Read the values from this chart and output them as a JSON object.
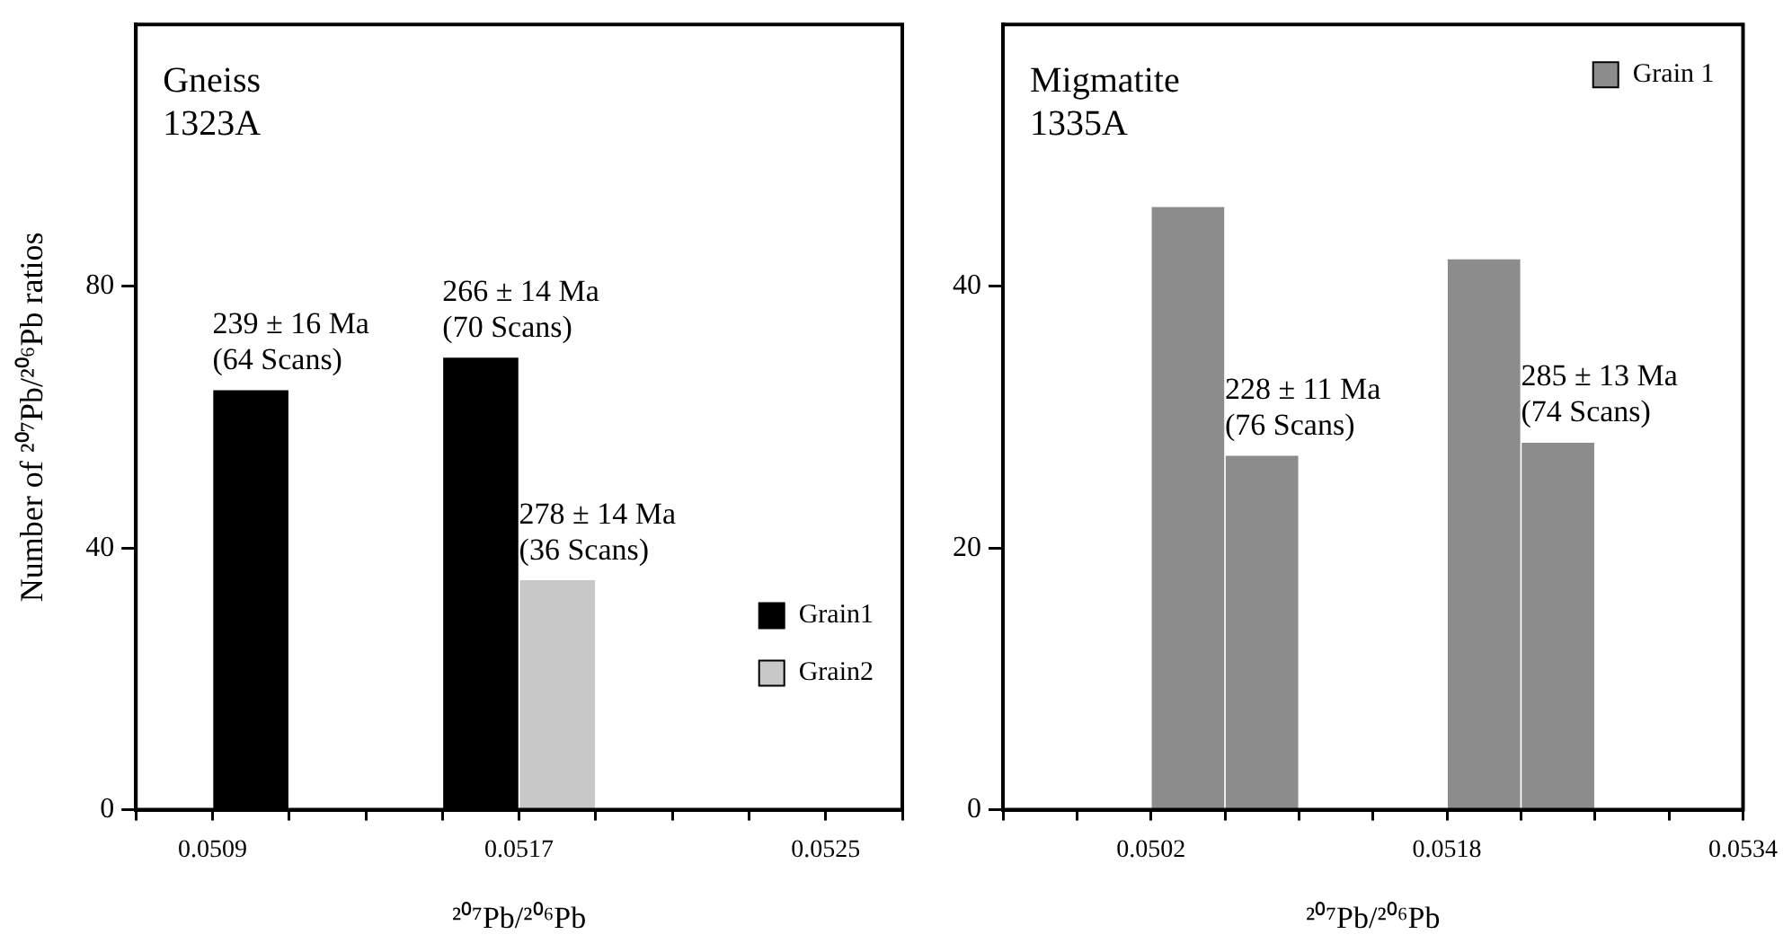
{
  "chart_data": [
    {
      "type": "histogram",
      "title": "Gneiss\n1323A",
      "xlabel": "²⁰⁷Pb/²⁰⁶Pb",
      "ylabel": "Number of ²⁰⁷Pb/²⁰⁶Pb ratios",
      "bins": [
        0.0509,
        0.0511,
        0.0513,
        0.0515,
        0.0517,
        0.0519
      ],
      "series": [
        {
          "name": "Grain1",
          "color": "#000000",
          "values": [
            64,
            null,
            null,
            69,
            null
          ]
        },
        {
          "name": "Grain2",
          "color": "#c8c8c8",
          "values": [
            null,
            null,
            null,
            null,
            35
          ]
        }
      ],
      "xlim": [
        0.0507,
        0.0527
      ],
      "xticks": [
        {
          "value": 0.0507,
          "label": null
        },
        0.0509,
        {
          "value": 0.0511,
          "label": null
        },
        {
          "value": 0.0513,
          "label": null
        },
        {
          "value": 0.0515,
          "label": null
        },
        0.0517,
        {
          "value": 0.0519,
          "label": null
        },
        {
          "value": 0.0521,
          "label": null
        },
        {
          "value": 0.0523,
          "label": null
        },
        0.0525,
        {
          "value": 0.0527,
          "label": null
        }
      ],
      "ylim": [
        0,
        120
      ],
      "yticks": [
        0,
        40,
        80
      ],
      "legend": "bottom right",
      "annotations": [
        {
          "text": "239 ± 16 Ma\n(64 Scans)",
          "x": 0.051,
          "y": 64
        },
        {
          "text": "266 ± 14 Ma\n(70 Scans)",
          "x": 0.0516,
          "y": 69
        },
        {
          "text": "278 ± 14 Ma\n(36 Scans)",
          "x": 0.0518,
          "y": 35
        }
      ]
    },
    {
      "type": "histogram",
      "title": "Migmatite\n1335A",
      "xlabel": "²⁰⁷Pb/²⁰⁶Pb",
      "bins": [
        0.0502,
        0.0506,
        0.051,
        0.0514,
        0.0518,
        0.0522,
        0.0526
      ],
      "series": [
        {
          "name": "Grain 1",
          "color": "#8c8c8c",
          "values": [
            46,
            27,
            null,
            null,
            42,
            28
          ]
        }
      ],
      "xlim": [
        0.0494,
        0.0534
      ],
      "xticks": [
        {
          "value": 0.0494,
          "label": null
        },
        {
          "value": 0.0498,
          "label": null
        },
        0.0502,
        {
          "value": 0.0506,
          "label": null
        },
        {
          "value": 0.051,
          "label": null
        },
        {
          "value": 0.0514,
          "label": null
        },
        0.0518,
        {
          "value": 0.0522,
          "label": null
        },
        {
          "value": 0.0526,
          "label": null
        },
        {
          "value": 0.053,
          "label": null
        },
        0.0534
      ],
      "ylim": [
        0,
        60
      ],
      "yticks": [
        0,
        20,
        40
      ],
      "legend": "top right",
      "annotations": [
        {
          "text": "228 ± 11 Ma\n(76 Scans)",
          "x": 0.0508,
          "y": 27
        },
        {
          "text": "285 ± 13 Ma\n(74 Scans)",
          "x": 0.0524,
          "y": 28
        }
      ]
    }
  ]
}
